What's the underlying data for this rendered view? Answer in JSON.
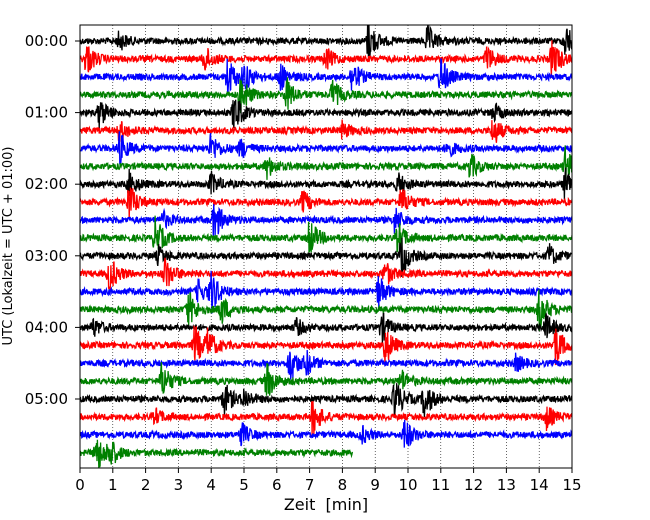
{
  "chart_data": {
    "type": "line",
    "title": "",
    "xlabel": "Zeit  [min]",
    "ylabel": "UTC (Lokalzeit = UTC + 01:00)",
    "xlim": [
      0,
      15
    ],
    "x_ticks": [
      "0",
      "1",
      "2",
      "3",
      "4",
      "5",
      "6",
      "7",
      "8",
      "9",
      "10",
      "11",
      "12",
      "13",
      "14",
      "15"
    ],
    "y_ticks": [
      {
        "label": "00:00",
        "minutes_from_start": 0
      },
      {
        "label": "01:00",
        "minutes_from_start": 60
      },
      {
        "label": "02:00",
        "minutes_from_start": 120
      },
      {
        "label": "03:00",
        "minutes_from_start": 180
      },
      {
        "label": "04:00",
        "minutes_from_start": 240
      },
      {
        "label": "05:00",
        "minutes_from_start": 300
      }
    ],
    "trace_interval_min": 15,
    "trace_count": 24,
    "last_trace_end_min": 8.3,
    "trace_colors": [
      "#000000",
      "#ff0000",
      "#0000ff",
      "#008000"
    ],
    "grid": "vertical dotted at each minute",
    "events": [
      {
        "trace": 0,
        "t": 8.8,
        "amp": 2.2
      },
      {
        "trace": 0,
        "t": 10.6,
        "amp": 1.6
      },
      {
        "trace": 0,
        "t": 14.8,
        "amp": 1.8
      },
      {
        "trace": 0,
        "t": 1.2,
        "amp": 1.0
      },
      {
        "trace": 1,
        "t": 0.2,
        "amp": 1.8
      },
      {
        "trace": 1,
        "t": 3.8,
        "amp": 1.4
      },
      {
        "trace": 1,
        "t": 7.5,
        "amp": 1.2
      },
      {
        "trace": 1,
        "t": 12.4,
        "amp": 1.4
      },
      {
        "trace": 1,
        "t": 14.4,
        "amp": 2.2
      },
      {
        "trace": 2,
        "t": 4.5,
        "amp": 2.2
      },
      {
        "trace": 2,
        "t": 6.1,
        "amp": 1.5
      },
      {
        "trace": 2,
        "t": 8.3,
        "amp": 1.8
      },
      {
        "trace": 2,
        "t": 11.0,
        "amp": 2.2
      },
      {
        "trace": 2,
        "t": 5.0,
        "amp": 1.4
      },
      {
        "trace": 3,
        "t": 4.9,
        "amp": 2.2
      },
      {
        "trace": 3,
        "t": 6.3,
        "amp": 1.8
      },
      {
        "trace": 3,
        "t": 7.7,
        "amp": 1.6
      },
      {
        "trace": 4,
        "t": 0.6,
        "amp": 1.6
      },
      {
        "trace": 4,
        "t": 4.7,
        "amp": 2.2
      },
      {
        "trace": 4,
        "t": 12.6,
        "amp": 1.0
      },
      {
        "trace": 5,
        "t": 1.2,
        "amp": 1.2
      },
      {
        "trace": 5,
        "t": 12.6,
        "amp": 1.6
      },
      {
        "trace": 5,
        "t": 8.0,
        "amp": 0.9
      },
      {
        "trace": 6,
        "t": 1.2,
        "amp": 1.8
      },
      {
        "trace": 6,
        "t": 4.0,
        "amp": 1.6
      },
      {
        "trace": 6,
        "t": 4.9,
        "amp": 1.0
      },
      {
        "trace": 6,
        "t": 11.2,
        "amp": 0.9
      },
      {
        "trace": 7,
        "t": 5.7,
        "amp": 1.2
      },
      {
        "trace": 7,
        "t": 11.9,
        "amp": 1.4
      },
      {
        "trace": 7,
        "t": 14.8,
        "amp": 2.0
      },
      {
        "trace": 8,
        "t": 1.5,
        "amp": 1.4
      },
      {
        "trace": 8,
        "t": 4.0,
        "amp": 1.2
      },
      {
        "trace": 8,
        "t": 9.7,
        "amp": 1.2
      },
      {
        "trace": 8,
        "t": 14.8,
        "amp": 1.8
      },
      {
        "trace": 9,
        "t": 1.5,
        "amp": 2.0
      },
      {
        "trace": 9,
        "t": 6.8,
        "amp": 1.2
      },
      {
        "trace": 9,
        "t": 9.8,
        "amp": 1.6
      },
      {
        "trace": 10,
        "t": 4.1,
        "amp": 2.2
      },
      {
        "trace": 10,
        "t": 2.5,
        "amp": 1.0
      },
      {
        "trace": 10,
        "t": 9.6,
        "amp": 1.4
      },
      {
        "trace": 11,
        "t": 2.3,
        "amp": 2.2
      },
      {
        "trace": 11,
        "t": 7.0,
        "amp": 2.0
      },
      {
        "trace": 11,
        "t": 9.7,
        "amp": 1.6
      },
      {
        "trace": 12,
        "t": 9.8,
        "amp": 2.2
      },
      {
        "trace": 12,
        "t": 2.4,
        "amp": 1.0
      },
      {
        "trace": 12,
        "t": 14.3,
        "amp": 1.2
      },
      {
        "trace": 13,
        "t": 0.9,
        "amp": 2.0
      },
      {
        "trace": 13,
        "t": 2.6,
        "amp": 1.8
      },
      {
        "trace": 13,
        "t": 9.3,
        "amp": 1.4
      },
      {
        "trace": 14,
        "t": 4.0,
        "amp": 2.2
      },
      {
        "trace": 14,
        "t": 9.1,
        "amp": 1.8
      },
      {
        "trace": 14,
        "t": 3.6,
        "amp": 1.2
      },
      {
        "trace": 15,
        "t": 3.3,
        "amp": 2.0
      },
      {
        "trace": 15,
        "t": 4.3,
        "amp": 1.6
      },
      {
        "trace": 15,
        "t": 14.0,
        "amp": 2.2
      },
      {
        "trace": 16,
        "t": 0.4,
        "amp": 1.0
      },
      {
        "trace": 16,
        "t": 9.2,
        "amp": 1.6
      },
      {
        "trace": 16,
        "t": 14.2,
        "amp": 1.4
      },
      {
        "trace": 16,
        "t": 6.6,
        "amp": 0.9
      },
      {
        "trace": 17,
        "t": 3.5,
        "amp": 2.2
      },
      {
        "trace": 17,
        "t": 9.3,
        "amp": 2.2
      },
      {
        "trace": 17,
        "t": 14.5,
        "amp": 2.2
      },
      {
        "trace": 17,
        "t": 3.9,
        "amp": 1.4
      },
      {
        "trace": 18,
        "t": 6.4,
        "amp": 2.0
      },
      {
        "trace": 18,
        "t": 6.9,
        "amp": 1.2
      },
      {
        "trace": 18,
        "t": 13.3,
        "amp": 0.9
      },
      {
        "trace": 19,
        "t": 2.5,
        "amp": 2.0
      },
      {
        "trace": 19,
        "t": 5.7,
        "amp": 2.0
      },
      {
        "trace": 19,
        "t": 9.8,
        "amp": 1.2
      },
      {
        "trace": 20,
        "t": 4.4,
        "amp": 1.8
      },
      {
        "trace": 20,
        "t": 9.6,
        "amp": 2.2
      },
      {
        "trace": 20,
        "t": 10.5,
        "amp": 2.0
      },
      {
        "trace": 20,
        "t": 5.0,
        "amp": 1.0
      },
      {
        "trace": 21,
        "t": 7.1,
        "amp": 2.0
      },
      {
        "trace": 21,
        "t": 14.2,
        "amp": 1.4
      },
      {
        "trace": 21,
        "t": 2.3,
        "amp": 0.8
      },
      {
        "trace": 22,
        "t": 4.9,
        "amp": 1.4
      },
      {
        "trace": 22,
        "t": 9.9,
        "amp": 1.8
      },
      {
        "trace": 22,
        "t": 8.6,
        "amp": 0.9
      },
      {
        "trace": 23,
        "t": 0.5,
        "amp": 2.2
      },
      {
        "trace": 23,
        "t": 0.9,
        "amp": 1.4
      }
    ]
  }
}
